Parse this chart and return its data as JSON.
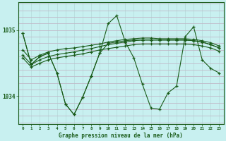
{
  "title": "Graphe pression niveau de la mer (hPa)",
  "background_color": "#c8f0f0",
  "grid_color_v": "#b8dede",
  "grid_color_h": "#c0b8c8",
  "line_color": "#1a5c1a",
  "xlim": [
    -0.5,
    23.5
  ],
  "ylim": [
    1033.58,
    1035.42
  ],
  "yticks": [
    1034,
    1035
  ],
  "xticks": [
    0,
    1,
    2,
    3,
    4,
    5,
    6,
    7,
    8,
    9,
    10,
    11,
    12,
    13,
    14,
    15,
    16,
    17,
    18,
    19,
    20,
    21,
    22,
    23
  ],
  "s1": [
    1034.95,
    1034.48,
    1034.6,
    1034.65,
    1034.35,
    1033.88,
    1033.72,
    1033.98,
    1034.3,
    1034.65,
    1035.1,
    1035.22,
    1034.82,
    1034.58,
    1034.18,
    1033.82,
    1033.8,
    1034.05,
    1034.15,
    1034.9,
    1035.05,
    1034.55,
    1034.42,
    1034.35
  ],
  "s2": [
    1034.62,
    1034.48,
    1034.55,
    1034.6,
    1034.63,
    1034.65,
    1034.67,
    1034.7,
    1034.72,
    1034.75,
    1034.78,
    1034.8,
    1034.82,
    1034.84,
    1034.85,
    1034.85,
    1034.85,
    1034.85,
    1034.85,
    1034.85,
    1034.84,
    1034.82,
    1034.78,
    1034.73
  ],
  "s3": [
    1034.7,
    1034.55,
    1034.62,
    1034.67,
    1034.7,
    1034.72,
    1034.73,
    1034.75,
    1034.77,
    1034.79,
    1034.82,
    1034.84,
    1034.86,
    1034.87,
    1034.88,
    1034.88,
    1034.87,
    1034.87,
    1034.87,
    1034.87,
    1034.86,
    1034.84,
    1034.81,
    1034.76
  ],
  "s4": [
    1034.58,
    1034.44,
    1034.5,
    1034.55,
    1034.58,
    1034.6,
    1034.62,
    1034.64,
    1034.67,
    1034.7,
    1034.72,
    1034.74,
    1034.76,
    1034.78,
    1034.79,
    1034.79,
    1034.79,
    1034.79,
    1034.79,
    1034.79,
    1034.78,
    1034.76,
    1034.73,
    1034.68
  ],
  "s5": [
    1034.95,
    1034.48,
    1034.6,
    1034.65,
    1034.35,
    1033.88,
    1033.72,
    1033.98,
    1034.3,
    1034.65,
    1034.8,
    1034.82,
    1034.84,
    1034.85,
    1034.85,
    1034.85,
    1034.85,
    1034.85,
    1034.85,
    1034.85,
    1034.84,
    1034.82,
    1034.78,
    1034.73
  ]
}
